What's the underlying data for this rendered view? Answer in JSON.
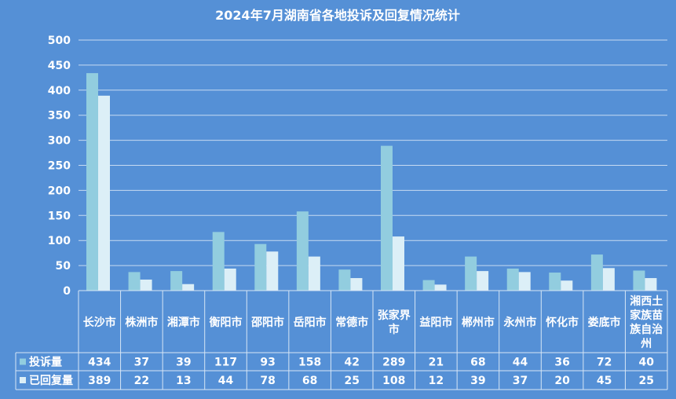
{
  "chart_data": {
    "type": "bar",
    "title": "2024年7月湖南省各地投诉及回复情况统计",
    "categories": [
      "长沙市",
      "株洲市",
      "湘潭市",
      "衡阳市",
      "邵阳市",
      "岳阳市",
      "常德市",
      "张家界市",
      "益阳市",
      "郴州市",
      "永州市",
      "怀化市",
      "娄底市",
      "湘西土家族苗族自治州"
    ],
    "series": [
      {
        "name": "投诉量",
        "color": "#92cddf",
        "values": [
          434,
          37,
          39,
          117,
          93,
          158,
          42,
          289,
          21,
          68,
          44,
          36,
          72,
          40
        ]
      },
      {
        "name": "已回复量",
        "color": "#dceff7",
        "values": [
          389,
          22,
          13,
          44,
          78,
          68,
          25,
          108,
          12,
          39,
          37,
          20,
          45,
          25
        ]
      }
    ],
    "ylim": [
      0,
      500
    ],
    "yticks": [
      0,
      50,
      100,
      150,
      200,
      250,
      300,
      350,
      400,
      450,
      500
    ],
    "grid": true,
    "legend": "data-table"
  }
}
